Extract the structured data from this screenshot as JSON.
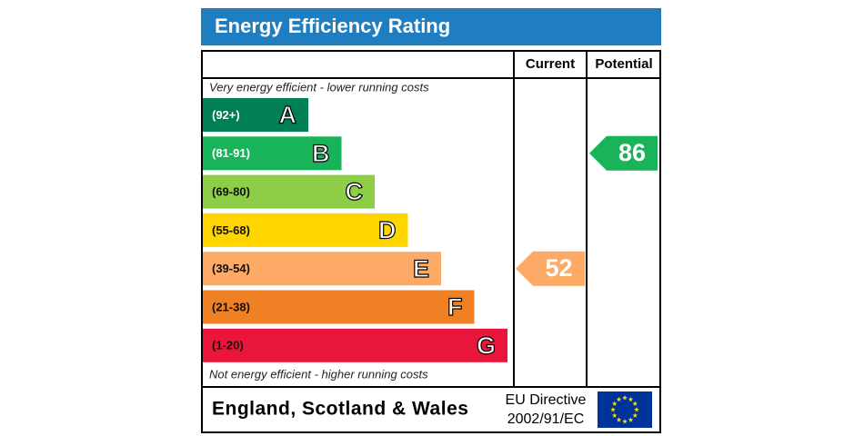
{
  "header": {
    "title": "Energy Efficiency Rating"
  },
  "columns": [
    "Current",
    "Potential"
  ],
  "top_note": "Very energy efficient - lower running costs",
  "bottom_note": "Not energy efficient - higher running costs",
  "bands": [
    {
      "range": "(92+)",
      "letter": "A",
      "color": "#008054"
    },
    {
      "range": "(81-91)",
      "letter": "B",
      "color": "#19b459"
    },
    {
      "range": "(69-80)",
      "letter": "C",
      "color": "#8dce46"
    },
    {
      "range": "(55-68)",
      "letter": "D",
      "color": "#ffd500"
    },
    {
      "range": "(39-54)",
      "letter": "E",
      "color": "#fcaa65"
    },
    {
      "range": "(21-38)",
      "letter": "F",
      "color": "#ef8023"
    },
    {
      "range": "(1-20)",
      "letter": "G",
      "color": "#e9153b"
    }
  ],
  "ratings": [
    {
      "value": 52,
      "color": "#fcaa65"
    },
    {
      "value": 86,
      "color": "#19b459"
    }
  ],
  "footer": {
    "region": "England, Scotland & Wales",
    "directive": [
      "EU Directive",
      "2002/91/EC"
    ]
  }
}
